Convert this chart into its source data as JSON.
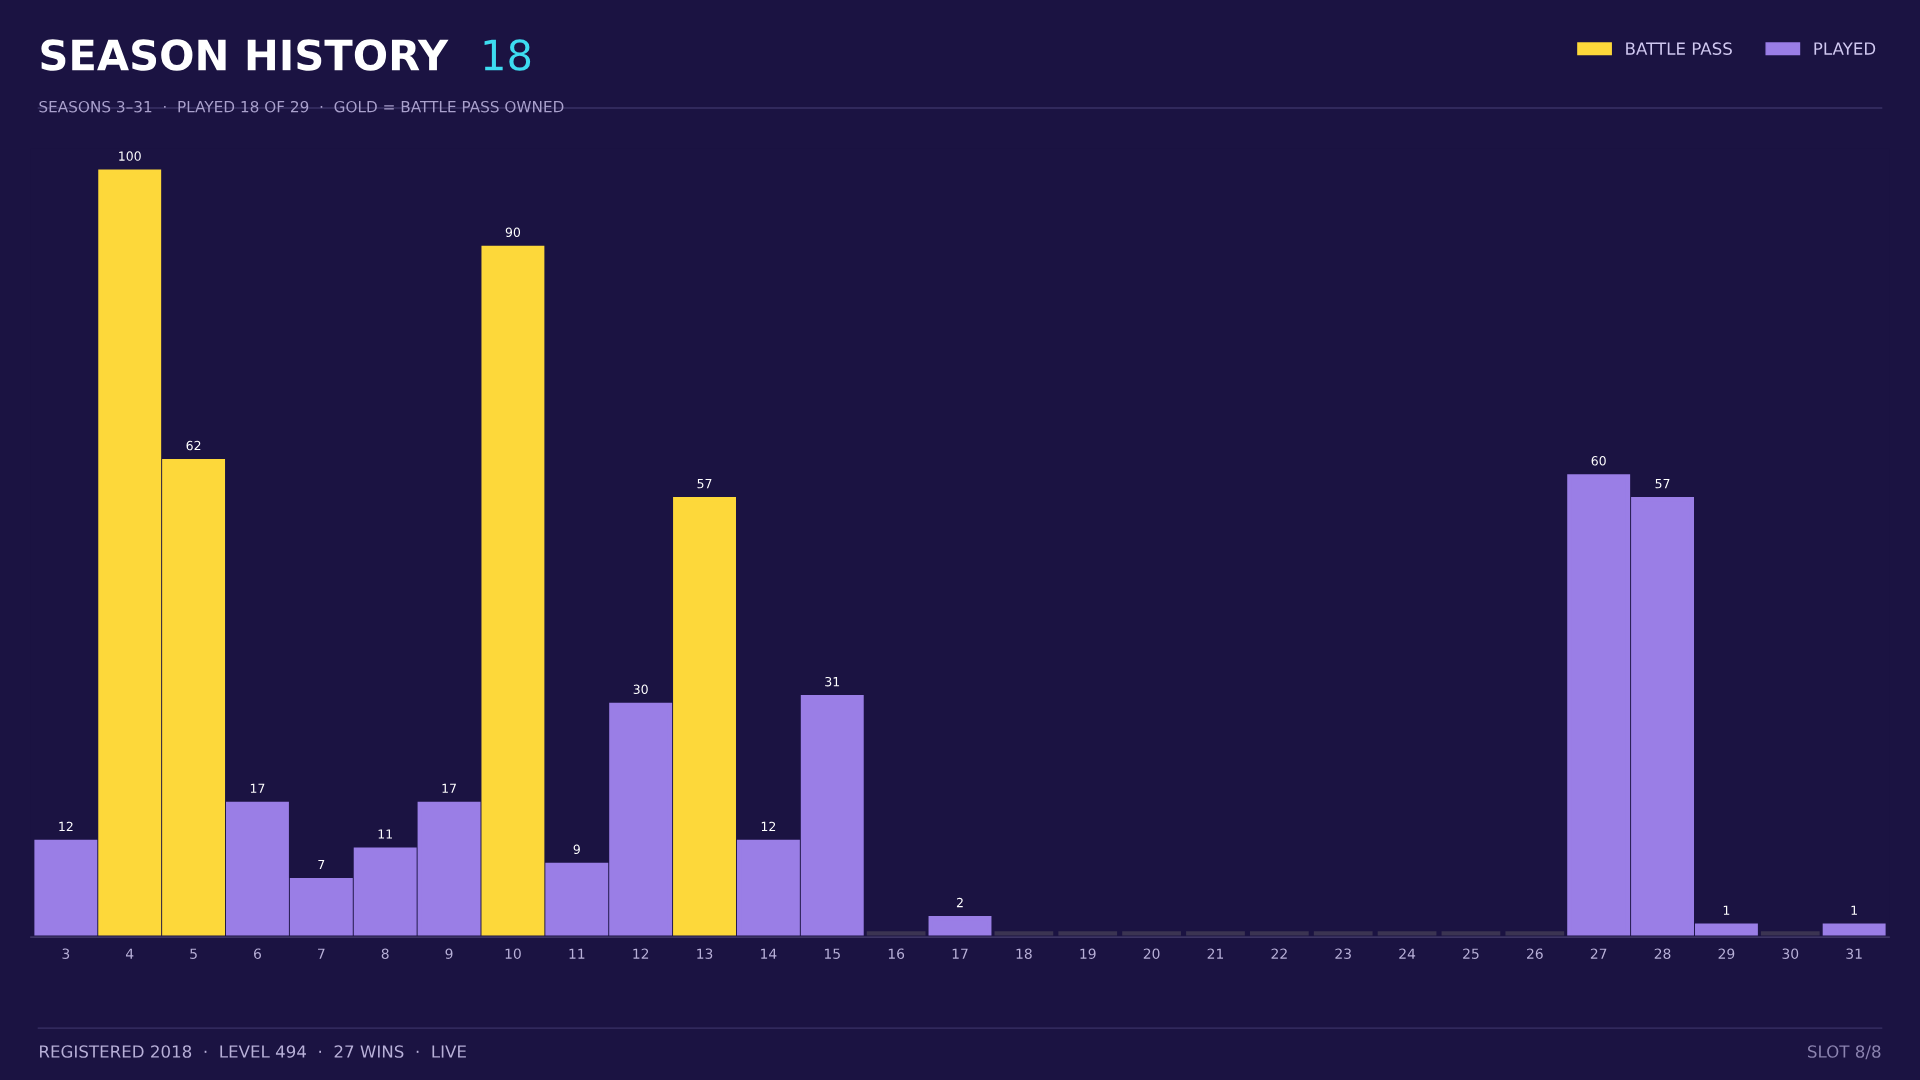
{
  "chart_data": {
    "type": "bar",
    "title": "SEASON HISTORY",
    "subtitle": "SEASONS 3–31  ·  PLAYED 18 OF 29  ·  GOLD = BATTLE PASS OWNED",
    "categories": [
      "3",
      "4",
      "5",
      "6",
      "7",
      "8",
      "9",
      "10",
      "11",
      "12",
      "13",
      "14",
      "15",
      "16",
      "17",
      "18",
      "19",
      "20",
      "21",
      "22",
      "23",
      "24",
      "25",
      "26",
      "27",
      "28",
      "29",
      "30",
      "31"
    ],
    "series": [
      {
        "name": "BATTLE PASS",
        "color": "#fdd83a",
        "values": [
          null,
          100,
          62,
          null,
          null,
          null,
          null,
          90,
          null,
          null,
          57,
          null,
          null,
          null,
          null,
          null,
          null,
          null,
          null,
          null,
          null,
          null,
          null,
          null,
          null,
          null,
          null,
          null,
          null
        ],
        "value_labels": [
          null,
          "100",
          "62",
          null,
          null,
          null,
          null,
          "90",
          null,
          null,
          "57",
          null,
          null,
          null,
          null,
          null,
          null,
          null,
          null,
          null,
          null,
          null,
          null,
          null,
          null,
          null,
          null,
          null,
          null
        ]
      },
      {
        "name": "PLAYED",
        "color": "#9a7ee6",
        "values": [
          12,
          null,
          null,
          17,
          7,
          11,
          17,
          null,
          9,
          30,
          null,
          12,
          31,
          null,
          2,
          null,
          null,
          null,
          null,
          null,
          null,
          null,
          null,
          null,
          60,
          57,
          1,
          null,
          1
        ],
        "value_labels": [
          "12",
          null,
          null,
          "17",
          "7",
          "11",
          "17",
          null,
          "9",
          "30",
          null,
          "12",
          "31",
          null,
          "2",
          null,
          null,
          null,
          null,
          null,
          null,
          null,
          null,
          null,
          "60",
          "57",
          "1",
          null,
          "1"
        ]
      },
      {
        "color": "#3b3452",
        "values": [
          null,
          null,
          null,
          null,
          null,
          null,
          null,
          null,
          null,
          null,
          null,
          null,
          null,
          0,
          null,
          0,
          0,
          0,
          0,
          0,
          0,
          0,
          0,
          0,
          null,
          null,
          null,
          0,
          null
        ]
      }
    ],
    "legend": "top right",
    "grid": false,
    "annotations": [
      "18",
      "REGISTERED 2018  ·  LEVEL 494  ·  27 WINS  ·  LIVE",
      "SLOT 8/8"
    ]
  }
}
